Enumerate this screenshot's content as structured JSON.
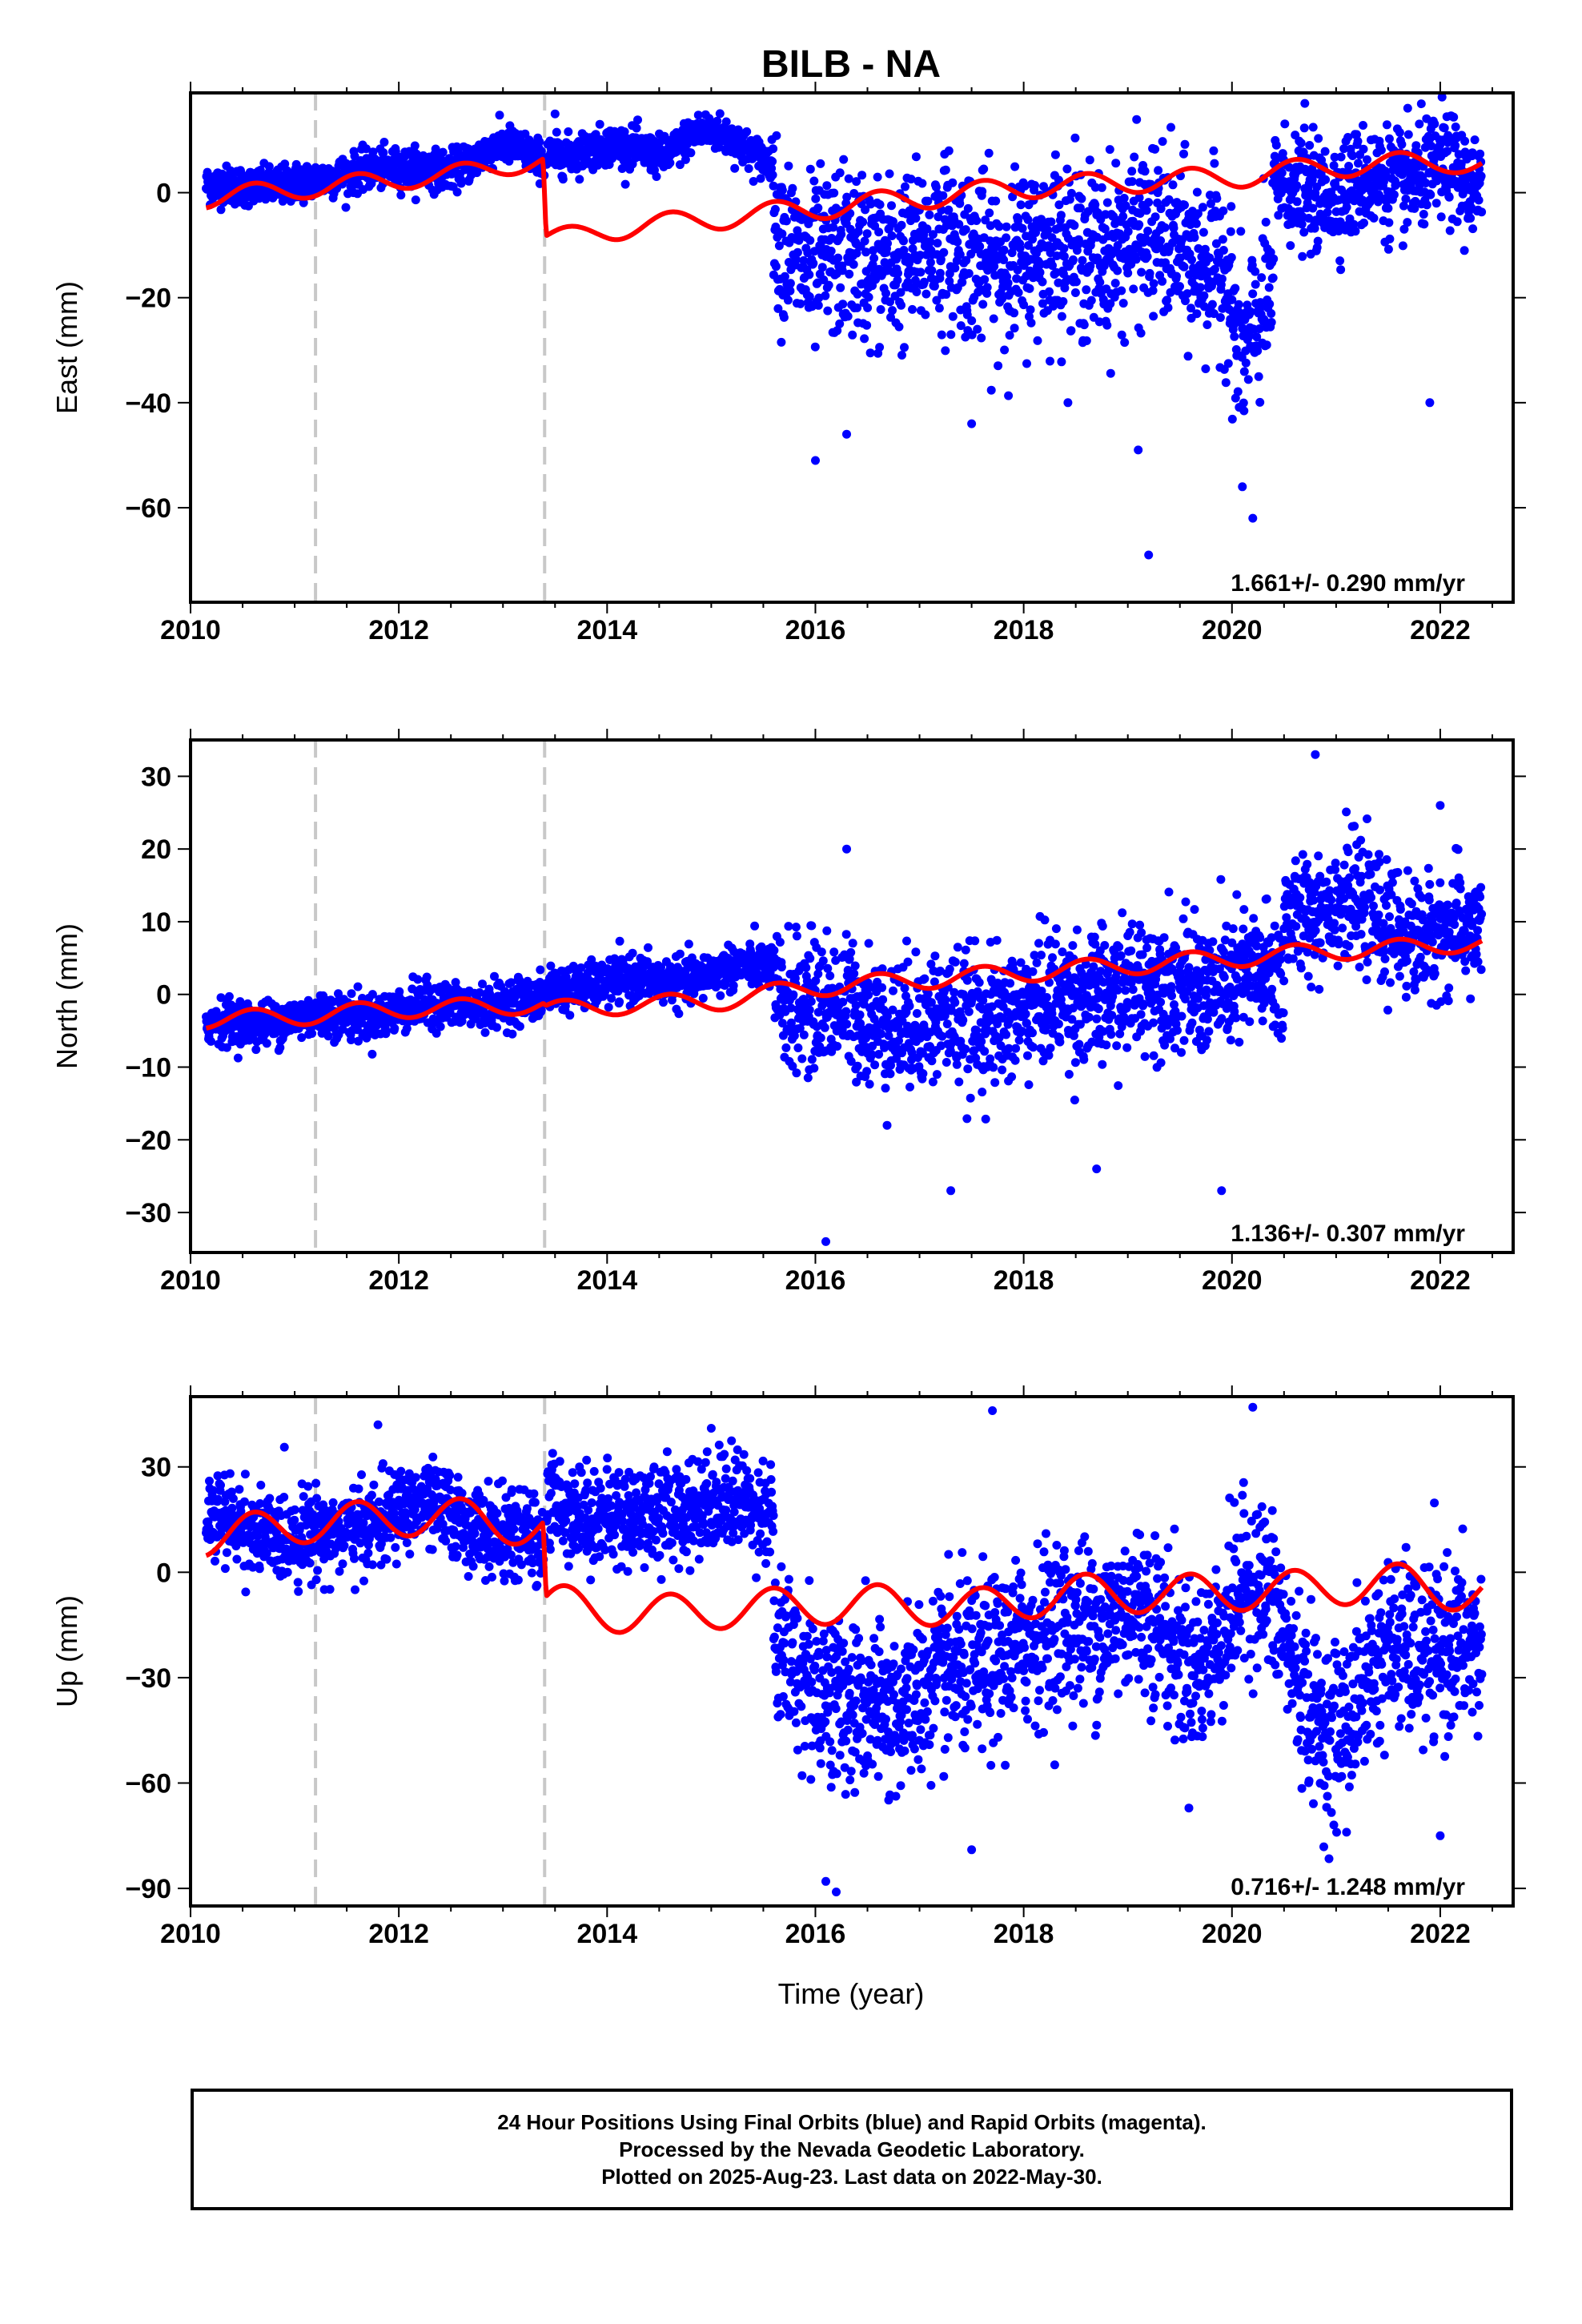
{
  "chart_data": {
    "type": "scatter",
    "title": "BILB - NA",
    "xlabel": "Time (year)",
    "xlim": [
      2010.0,
      2022.7
    ],
    "xticks": [
      2010,
      2012,
      2014,
      2016,
      2018,
      2020,
      2022
    ],
    "legend": "none",
    "grid": false,
    "colors": {
      "observed": "#0000ff",
      "model": "#ff0000",
      "offset_lines": "#c8c8c8"
    },
    "offset_epochs": [
      2011.2,
      2013.4
    ],
    "panels": [
      {
        "name": "East",
        "ylabel": "East (mm)",
        "ylim": [
          -78,
          19
        ],
        "yticks": [
          0,
          -20,
          -40,
          -60
        ],
        "rate_label": "1.661+/- 0.290 mm/yr",
        "model_knots": [
          [
            2010.15,
            -1
          ],
          [
            2011.2,
            1
          ],
          [
            2012.3,
            3
          ],
          [
            2013.38,
            6
          ],
          [
            2013.42,
            -9
          ],
          [
            2014,
            -7
          ],
          [
            2015,
            -5
          ],
          [
            2016,
            -3
          ],
          [
            2017,
            -1
          ],
          [
            2018,
            1
          ],
          [
            2019,
            2
          ],
          [
            2020,
            3
          ],
          [
            2021,
            5
          ],
          [
            2022,
            6
          ],
          [
            2022.4,
            5
          ]
        ],
        "observed_segments": [
          {
            "x": [
              2010.15,
              2013.4
            ],
            "knots": [
              [
                2010.15,
                1
              ],
              [
                2011.2,
                2
              ],
              [
                2011.8,
                5
              ],
              [
                2012.4,
                4
              ],
              [
                2013,
                9
              ],
              [
                2013.4,
                6
              ]
            ],
            "noise": 1.8,
            "outliers": []
          },
          {
            "x": [
              2013.42,
              2015.6
            ],
            "knots": [
              [
                2013.42,
                7
              ],
              [
                2014,
                9
              ],
              [
                2014.5,
                7
              ],
              [
                2014.9,
                12
              ],
              [
                2015.6,
                6
              ]
            ],
            "noise": 1.8,
            "outliers": [
              [
                2013.5,
                15
              ]
            ]
          },
          {
            "x": [
              2015.6,
              2020.4
            ],
            "knots": [
              [
                2015.6,
                -5
              ],
              [
                2016,
                -14
              ],
              [
                2017,
                -11
              ],
              [
                2018,
                -12
              ],
              [
                2019,
                -9
              ],
              [
                2019.9,
                -12
              ],
              [
                2020.1,
                -32
              ],
              [
                2020.4,
                -20
              ]
            ],
            "noise": 8.0,
            "outliers": [
              [
                2016,
                -51
              ],
              [
                2016.3,
                -46
              ],
              [
                2017.5,
                -44
              ],
              [
                2019.1,
                -49
              ],
              [
                2019.2,
                -69
              ],
              [
                2020.1,
                -56
              ],
              [
                2020.2,
                -62
              ]
            ]
          },
          {
            "x": [
              2020.4,
              2022.4
            ],
            "knots": [
              [
                2020.4,
                2
              ],
              [
                2021,
                0
              ],
              [
                2021.5,
                2
              ],
              [
                2022,
                5
              ],
              [
                2022.4,
                -2
              ]
            ],
            "noise": 5.0,
            "outliers": [
              [
                2020.7,
                17
              ],
              [
                2021.9,
                -40
              ]
            ]
          }
        ]
      },
      {
        "name": "North",
        "ylabel": "North (mm)",
        "ylim": [
          -35.5,
          35
        ],
        "yticks": [
          30,
          20,
          10,
          0,
          -10,
          -20,
          -30
        ],
        "rate_label": "1.136+/- 0.307 mm/yr",
        "model_knots": [
          [
            2010.15,
            -3.5
          ],
          [
            2011,
            -3
          ],
          [
            2012,
            -2
          ],
          [
            2013.38,
            -1.5
          ],
          [
            2013.42,
            -2
          ],
          [
            2015,
            -1
          ],
          [
            2016,
            1
          ],
          [
            2017,
            2
          ],
          [
            2018,
            3
          ],
          [
            2019,
            4
          ],
          [
            2020,
            5
          ],
          [
            2021,
            6
          ],
          [
            2022.4,
            7
          ]
        ],
        "observed_segments": [
          {
            "x": [
              2010.15,
              2013.4
            ],
            "knots": [
              [
                2010.15,
                -4
              ],
              [
                2011.5,
                -3
              ],
              [
                2012.5,
                -1.5
              ],
              [
                2013.4,
                -1
              ]
            ],
            "noise": 1.5,
            "outliers": []
          },
          {
            "x": [
              2013.42,
              2015.6
            ],
            "knots": [
              [
                2013.42,
                1
              ],
              [
                2014.5,
                2
              ],
              [
                2015.6,
                4
              ]
            ],
            "noise": 1.5,
            "outliers": []
          },
          {
            "x": [
              2015.6,
              2020.5
            ],
            "knots": [
              [
                2015.6,
                0
              ],
              [
                2016.5,
                -3
              ],
              [
                2017.3,
                -4
              ],
              [
                2018,
                -2
              ],
              [
                2019,
                1
              ],
              [
                2020.5,
                2
              ]
            ],
            "noise": 4.5,
            "outliers": [
              [
                2016.1,
                -34
              ],
              [
                2016.3,
                20
              ],
              [
                2017.3,
                -27
              ],
              [
                2018.7,
                -24
              ],
              [
                2019.9,
                -27
              ],
              [
                2020.8,
                33
              ]
            ]
          },
          {
            "x": [
              2020.5,
              2022.4
            ],
            "knots": [
              [
                2020.5,
                11
              ],
              [
                2021,
                13
              ],
              [
                2021.5,
                9
              ],
              [
                2022.4,
                8
              ]
            ],
            "noise": 4.0,
            "outliers": [
              [
                2022,
                26
              ]
            ]
          }
        ]
      },
      {
        "name": "Up",
        "ylabel": "Up (mm)",
        "ylim": [
          -95,
          50
        ],
        "yticks": [
          30,
          0,
          -30,
          -60,
          -90
        ],
        "rate_label": "0.716+/- 1.248 mm/yr",
        "model_knots": [
          [
            2010.15,
            10
          ],
          [
            2011.2,
            14
          ],
          [
            2012.3,
            16
          ],
          [
            2013.38,
            13
          ],
          [
            2013.42,
            -9
          ],
          [
            2014.3,
            -12
          ],
          [
            2015.5,
            -10
          ],
          [
            2016.5,
            -9
          ],
          [
            2017.5,
            -10
          ],
          [
            2018.5,
            -6
          ],
          [
            2019.5,
            -6
          ],
          [
            2020.5,
            -5
          ],
          [
            2021.5,
            -3
          ],
          [
            2022.4,
            -6
          ]
        ],
        "observed_segments": [
          {
            "x": [
              2010.15,
              2013.4
            ],
            "knots": [
              [
                2010.15,
                14
              ],
              [
                2011.2,
                10
              ],
              [
                2012.2,
                18
              ],
              [
                2013.4,
                8
              ]
            ],
            "noise": 6.0,
            "outliers": [
              [
                2011.8,
                42
              ]
            ]
          },
          {
            "x": [
              2013.42,
              2015.6
            ],
            "knots": [
              [
                2013.42,
                20
              ],
              [
                2014.2,
                15
              ],
              [
                2014.9,
                20
              ],
              [
                2015.6,
                18
              ]
            ],
            "noise": 7.0,
            "outliers": [
              [
                2015.0,
                41
              ]
            ]
          },
          {
            "x": [
              2015.6,
              2022.4
            ],
            "knots": [
              [
                2015.6,
                -20
              ],
              [
                2016.3,
                -40
              ],
              [
                2017,
                -35
              ],
              [
                2018,
                -20
              ],
              [
                2019,
                -10
              ],
              [
                2019.6,
                -25
              ],
              [
                2020.2,
                -5
              ],
              [
                2021,
                -45
              ],
              [
                2021.6,
                -20
              ],
              [
                2022.4,
                -25
              ]
            ],
            "noise": 12.0,
            "outliers": [
              [
                2016.1,
                -88
              ],
              [
                2016.2,
                -91
              ],
              [
                2017.5,
                -79
              ],
              [
                2017.7,
                46
              ],
              [
                2020.2,
                47
              ],
              [
                2021.1,
                -74
              ],
              [
                2022,
                -75
              ]
            ]
          }
        ]
      }
    ]
  },
  "caption": {
    "line1": "24 Hour Positions Using Final Orbits (blue) and Rapid Orbits (magenta).",
    "line2": "Processed by the Nevada Geodetic Laboratory.",
    "line3": "Plotted on 2025-Aug-23. Last data on 2022-May-30."
  }
}
